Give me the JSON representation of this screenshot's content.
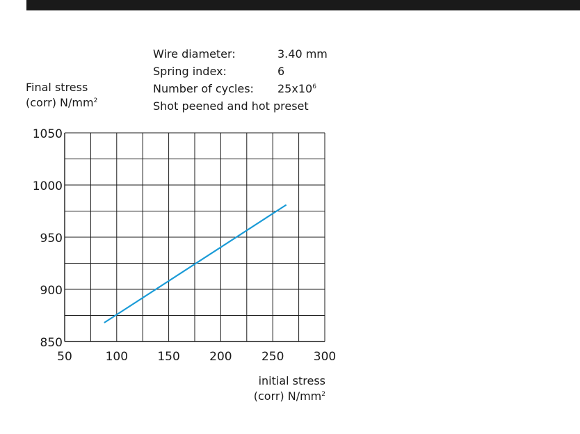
{
  "specs": [
    {
      "label": "Wire diameter:",
      "value": "3.40 mm"
    },
    {
      "label": "Spring index:",
      "value": "6"
    },
    {
      "label": "Number of cycles:",
      "value": "25x10",
      "value_sup": "6"
    },
    {
      "label": "Shot peened and hot preset",
      "value": ""
    }
  ],
  "colors": {
    "line": "#1a9bd7",
    "grid": "#1a1a1a",
    "top_bar": "#1a1a1a"
  },
  "chart_data": {
    "type": "line",
    "title": "",
    "ylabel": [
      "Final stress",
      "(corr) N/mm",
      "2"
    ],
    "xlabel": [
      "initial stress",
      "(corr) N/mm",
      "2"
    ],
    "xlim": [
      50,
      300
    ],
    "ylim": [
      850,
      1050
    ],
    "x_ticks": [
      50,
      100,
      150,
      200,
      250,
      300
    ],
    "y_ticks": [
      850,
      900,
      950,
      1000,
      1050
    ],
    "x_grid_step": 25,
    "y_grid_step": 25,
    "grid": true,
    "series": [
      {
        "x": [
          88,
          263
        ],
        "y": [
          868,
          981
        ]
      }
    ]
  }
}
